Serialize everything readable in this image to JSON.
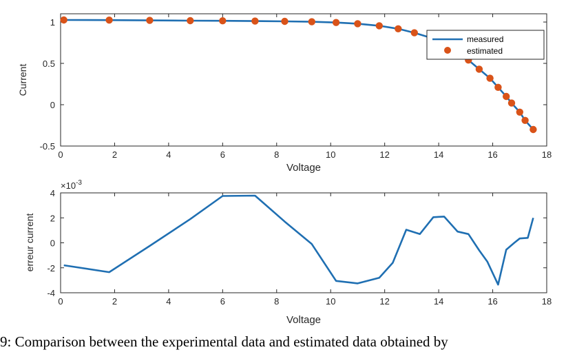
{
  "chart_data": [
    {
      "type": "line",
      "xlabel": "Voltage",
      "ylabel": "Current",
      "xlim": [
        0,
        18
      ],
      "ylim": [
        -0.5,
        1.1
      ],
      "xticks": [
        "0",
        "2",
        "4",
        "6",
        "8",
        "10",
        "12",
        "14",
        "16",
        "18"
      ],
      "yticks": [
        "-0.5",
        "0",
        "0.5",
        "1"
      ],
      "grid": false,
      "legend_position": "top-right",
      "series": [
        {
          "name": "measured",
          "style": "line",
          "color": "#1f6fb2",
          "x": [
            0.12,
            1.8,
            3.3,
            4.8,
            6.0,
            7.2,
            8.3,
            9.3,
            10.2,
            11.0,
            11.8,
            12.5,
            13.1,
            13.7,
            14.3,
            14.7,
            15.1,
            15.5,
            15.9,
            16.2,
            16.5,
            16.7,
            17.0,
            17.2,
            17.5
          ],
          "y": [
            1.025,
            1.023,
            1.02,
            1.017,
            1.015,
            1.012,
            1.008,
            1.003,
            0.994,
            0.98,
            0.955,
            0.918,
            0.87,
            0.81,
            0.73,
            0.64,
            0.54,
            0.43,
            0.32,
            0.21,
            0.1,
            0.02,
            -0.09,
            -0.19,
            -0.3
          ]
        },
        {
          "name": "estimated",
          "style": "markers",
          "color": "#d95319",
          "x": [
            0.12,
            1.8,
            3.3,
            4.8,
            6.0,
            7.2,
            8.3,
            9.3,
            10.2,
            11.0,
            11.8,
            12.5,
            13.1,
            13.7,
            14.3,
            14.7,
            15.1,
            15.5,
            15.9,
            16.2,
            16.5,
            16.7,
            17.0,
            17.2,
            17.5
          ],
          "y": [
            1.025,
            1.023,
            1.02,
            1.017,
            1.015,
            1.012,
            1.008,
            1.003,
            0.994,
            0.98,
            0.955,
            0.918,
            0.87,
            0.81,
            0.73,
            0.64,
            0.54,
            0.43,
            0.32,
            0.21,
            0.1,
            0.02,
            -0.09,
            -0.19,
            -0.3
          ]
        }
      ]
    },
    {
      "type": "line",
      "xlabel": "Voltage",
      "ylabel": "erreur current",
      "exponent_label": "×10",
      "exponent_power": "-3",
      "xlim": [
        0,
        18
      ],
      "ylim": [
        -4,
        4
      ],
      "xticks": [
        "0",
        "2",
        "4",
        "6",
        "8",
        "10",
        "12",
        "14",
        "16",
        "18"
      ],
      "yticks": [
        "-4",
        "-2",
        "0",
        "2",
        "4"
      ],
      "grid": false,
      "series": [
        {
          "style": "line",
          "color": "#1f6fb2",
          "x": [
            0.12,
            1.8,
            3.3,
            4.8,
            6.0,
            7.2,
            8.3,
            9.3,
            10.2,
            11.0,
            11.8,
            12.3,
            12.8,
            13.3,
            13.8,
            14.2,
            14.7,
            15.1,
            15.5,
            15.8,
            16.2,
            16.5,
            16.8,
            17.0,
            17.3,
            17.5
          ],
          "y": [
            -1.8,
            -2.35,
            -0.25,
            1.9,
            3.75,
            3.78,
            1.7,
            -0.1,
            -3.05,
            -3.25,
            -2.8,
            -1.6,
            1.05,
            0.7,
            2.05,
            2.1,
            0.9,
            0.7,
            -0.6,
            -1.5,
            -3.35,
            -0.55,
            0.0,
            0.35,
            0.4,
            2.0
          ]
        }
      ]
    }
  ],
  "caption": "9: Comparison between the experimental data and estimated data obtained by"
}
